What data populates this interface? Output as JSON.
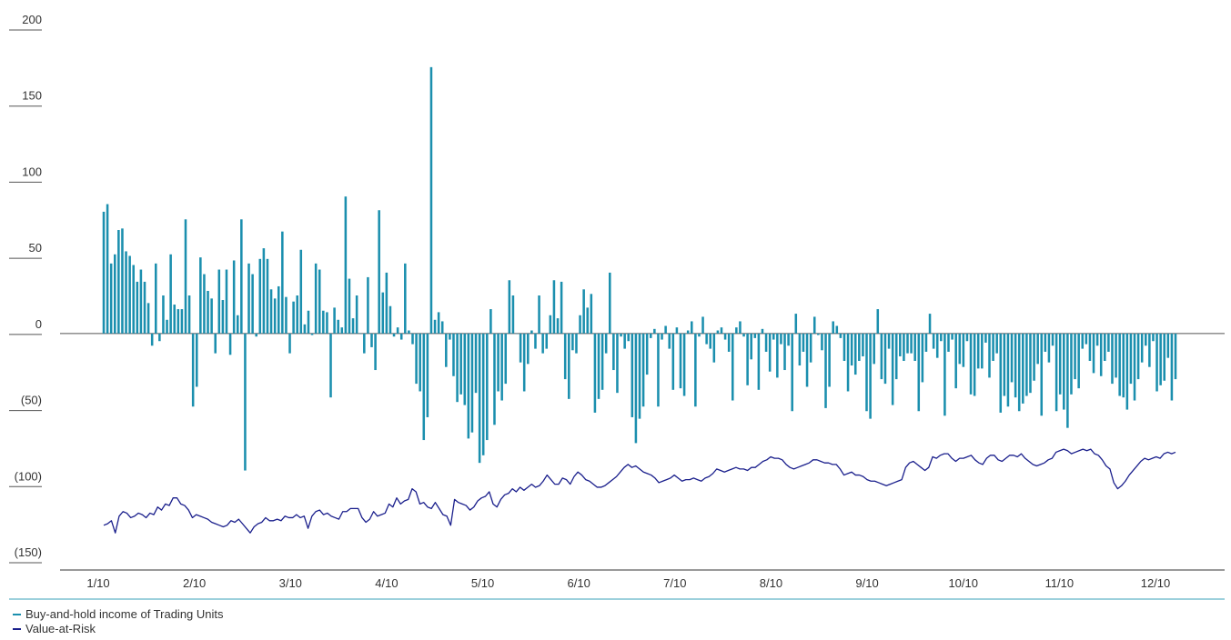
{
  "chart_data": {
    "type": "bar",
    "y_ticks": [
      200,
      150,
      100,
      50,
      0,
      -50,
      -100,
      -150
    ],
    "y_tick_labels": [
      "200",
      "150",
      "100",
      "50",
      "0",
      "(50)",
      "(100)",
      "(150)"
    ],
    "ylim": [
      -150,
      200
    ],
    "x_tick_labels": [
      "1/10",
      "2/10",
      "3/10",
      "4/10",
      "5/10",
      "6/10",
      "7/10",
      "8/10",
      "9/10",
      "10/10",
      "11/10",
      "12/10"
    ],
    "colors": {
      "income": "#1b8fae",
      "var": "#1a1f8c",
      "axis": "#555555",
      "accent": "#3aa0b8"
    },
    "series": [
      {
        "name": "Buy-and-hold income of Trading Units",
        "kind": "bar",
        "values": [
          80,
          85,
          46,
          52,
          68,
          69,
          54,
          51,
          45,
          34,
          42,
          34,
          20,
          -8,
          46,
          -5,
          25,
          9,
          52,
          19,
          16,
          16,
          75,
          25,
          -48,
          -35,
          50,
          39,
          28,
          23,
          -13,
          42,
          22,
          42,
          -14,
          48,
          12,
          75,
          -90,
          46,
          39,
          -2,
          49,
          56,
          49,
          29,
          23,
          31,
          67,
          24,
          -13,
          21,
          25,
          55,
          6,
          15,
          -1,
          46,
          42,
          15,
          14,
          -42,
          17,
          9,
          4,
          90,
          36,
          10,
          25,
          0,
          -13,
          37,
          -9,
          -24,
          81,
          27,
          40,
          18,
          -2,
          4,
          -4,
          46,
          2,
          -7,
          -33,
          -38,
          -70,
          -55,
          175,
          9,
          14,
          8,
          -22,
          -4,
          -28,
          -45,
          -40,
          -47,
          -69,
          -65,
          -39,
          -85,
          -80,
          -70,
          16,
          -60,
          -38,
          -44,
          -33,
          35,
          25,
          0,
          -19,
          -38,
          -20,
          2,
          -10,
          25,
          -13,
          -10,
          12,
          35,
          10,
          34,
          -30,
          -43,
          -11,
          -13,
          12,
          29,
          17,
          26,
          -52,
          -43,
          -37,
          -13,
          40,
          -24,
          -39,
          -2,
          -10,
          -5,
          -55,
          -72,
          -56,
          -48,
          -27,
          -3,
          3,
          -48,
          -4,
          5,
          -10,
          -37,
          4,
          -36,
          -41,
          2,
          8,
          -48,
          -2,
          11,
          -7,
          -10,
          -19,
          2,
          4,
          -4,
          -12,
          -44,
          4,
          8,
          -2,
          -34,
          -17,
          -3,
          -37,
          3,
          -12,
          -25,
          -4,
          -29,
          -7,
          -24,
          -8,
          -51,
          13,
          -21,
          -12,
          -35,
          -19,
          11,
          -1,
          -11,
          -49,
          -35,
          8,
          5,
          -3,
          -18,
          -38,
          -21,
          -27,
          -18,
          -15,
          -51,
          -56,
          -20,
          16,
          -30,
          -33,
          -10,
          -47,
          -30,
          -15,
          -18,
          -13,
          -13,
          -18,
          -51,
          -32,
          -12,
          13,
          -10,
          -16,
          -5,
          -54,
          -12,
          -4,
          -36,
          -20,
          -22,
          -5,
          -40,
          -41,
          -23,
          -23,
          -6,
          -29,
          -18,
          -13,
          -52,
          -41,
          -48,
          -32,
          -42,
          -51,
          -46,
          -41,
          -39,
          -31,
          -20,
          -54,
          -12,
          -19,
          -8,
          -51,
          -40,
          -50,
          -62,
          -40,
          -30,
          -36,
          -10,
          -7,
          -18,
          -26,
          -8,
          -28,
          -18,
          -12,
          -33,
          -29,
          -41,
          -42,
          -50,
          -33,
          -44,
          -30,
          -19,
          -8,
          -22,
          -5,
          -38,
          -34,
          -31,
          -16,
          -44,
          -30
        ]
      },
      {
        "name": "Value-at-Risk",
        "kind": "line",
        "values": [
          -126,
          -125,
          -123,
          -131,
          -120,
          -117,
          -118,
          -121,
          -120,
          -118,
          -119,
          -121,
          -118,
          -119,
          -114,
          -116,
          -112,
          -113,
          -108,
          -108,
          -112,
          -113,
          -116,
          -121,
          -119,
          -120,
          -121,
          -122,
          -124,
          -125,
          -126,
          -127,
          -126,
          -123,
          -124,
          -122,
          -125,
          -128,
          -131,
          -127,
          -125,
          -124,
          -121,
          -123,
          -123,
          -122,
          -123,
          -120,
          -121,
          -121,
          -119,
          -121,
          -120,
          -128,
          -120,
          -117,
          -116,
          -119,
          -118,
          -120,
          -121,
          -122,
          -117,
          -117,
          -115,
          -115,
          -115,
          -121,
          -124,
          -122,
          -117,
          -120,
          -119,
          -118,
          -112,
          -114,
          -108,
          -112,
          -110,
          -109,
          -102,
          -104,
          -112,
          -111,
          -114,
          -115,
          -111,
          -115,
          -119,
          -120,
          -126,
          -109,
          -111,
          -112,
          -113,
          -116,
          -114,
          -110,
          -108,
          -107,
          -104,
          -112,
          -114,
          -109,
          -106,
          -105,
          -102,
          -104,
          -101,
          -103,
          -101,
          -99,
          -101,
          -100,
          -97,
          -93,
          -96,
          -99,
          -99,
          -95,
          -96,
          -99,
          -94,
          -91,
          -93,
          -96,
          -97,
          -99,
          -101,
          -101,
          -100,
          -98,
          -96,
          -94,
          -91,
          -88,
          -86,
          -88,
          -87,
          -89,
          -91,
          -92,
          -93,
          -95,
          -98,
          -97,
          -96,
          -95,
          -93,
          -95,
          -97,
          -96,
          -96,
          -95,
          -96,
          -97,
          -95,
          -94,
          -92,
          -89,
          -90,
          -91,
          -90,
          -89,
          -88,
          -89,
          -89,
          -90,
          -88,
          -88,
          -86,
          -84,
          -83,
          -81,
          -82,
          -82,
          -83,
          -86,
          -88,
          -89,
          -88,
          -87,
          -86,
          -85,
          -83,
          -83,
          -84,
          -85,
          -85,
          -86,
          -86,
          -89,
          -93,
          -92,
          -91,
          -93,
          -93,
          -94,
          -96,
          -97,
          -97,
          -98,
          -99,
          -100,
          -99,
          -98,
          -97,
          -96,
          -88,
          -85,
          -84,
          -86,
          -88,
          -90,
          -88,
          -81,
          -82,
          -80,
          -79,
          -79,
          -82,
          -84,
          -82,
          -82,
          -81,
          -80,
          -83,
          -85,
          -86,
          -82,
          -80,
          -80,
          -83,
          -84,
          -82,
          -80,
          -80,
          -81,
          -79,
          -82,
          -84,
          -86,
          -87,
          -86,
          -85,
          -83,
          -82,
          -78,
          -77,
          -76,
          -77,
          -79,
          -78,
          -77,
          -76,
          -77,
          -76,
          -79,
          -80,
          -83,
          -87,
          -89,
          -98,
          -102,
          -100,
          -97,
          -93,
          -90,
          -87,
          -84,
          -82,
          -83,
          -82,
          -81,
          -82,
          -79,
          -78,
          -79,
          -78
        ]
      }
    ],
    "legend": [
      "Buy-and-hold income of Trading Units",
      "Value-at-Risk"
    ],
    "legend_position": "bottom-left",
    "grid": false
  }
}
